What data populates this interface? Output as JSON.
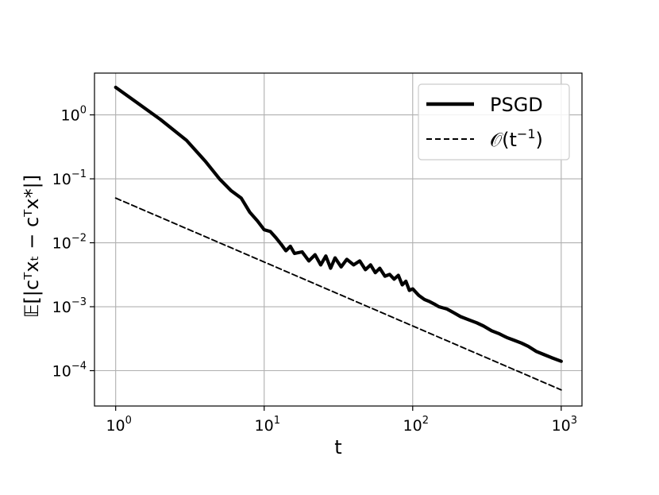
{
  "chart_data": {
    "type": "line",
    "xscale": "log",
    "yscale": "log",
    "xlim": [
      0.72,
      1380
    ],
    "ylim": [
      2.8e-05,
      4.5
    ],
    "grid": true,
    "legend_position": "top-right",
    "xlabel": "t",
    "ylabel": "𝔼[|cᵀxₜ − cᵀx*|]",
    "xticks": [
      {
        "value": 1,
        "base": "10",
        "exp": "0"
      },
      {
        "value": 10,
        "base": "10",
        "exp": "1"
      },
      {
        "value": 100,
        "base": "10",
        "exp": "2"
      },
      {
        "value": 1000,
        "base": "10",
        "exp": "3"
      }
    ],
    "yticks": [
      {
        "value": 1,
        "base": "10",
        "exp": "0"
      },
      {
        "value": 0.1,
        "base": "10",
        "exp": "−1"
      },
      {
        "value": 0.01,
        "base": "10",
        "exp": "−2"
      },
      {
        "value": 0.001,
        "base": "10",
        "exp": "−3"
      },
      {
        "value": 0.0001,
        "base": "10",
        "exp": "−4"
      }
    ],
    "series": [
      {
        "name": "PSGD",
        "style": "solid",
        "color": "#000000",
        "points": [
          [
            1,
            2.7
          ],
          [
            2,
            0.85
          ],
          [
            3,
            0.4
          ],
          [
            4,
            0.19
          ],
          [
            5,
            0.1
          ],
          [
            6,
            0.065
          ],
          [
            7,
            0.05
          ],
          [
            8,
            0.03
          ],
          [
            9,
            0.022
          ],
          [
            10,
            0.016
          ],
          [
            11,
            0.015
          ],
          [
            12,
            0.012
          ],
          [
            13,
            0.0095
          ],
          [
            14,
            0.0075
          ],
          [
            15,
            0.0088
          ],
          [
            16,
            0.0068
          ],
          [
            18,
            0.0072
          ],
          [
            20,
            0.0052
          ],
          [
            22,
            0.0065
          ],
          [
            24,
            0.0045
          ],
          [
            26,
            0.0062
          ],
          [
            28,
            0.004
          ],
          [
            30,
            0.0058
          ],
          [
            33,
            0.0042
          ],
          [
            36,
            0.0055
          ],
          [
            40,
            0.0045
          ],
          [
            44,
            0.0052
          ],
          [
            48,
            0.0038
          ],
          [
            52,
            0.0045
          ],
          [
            56,
            0.0034
          ],
          [
            60,
            0.004
          ],
          [
            65,
            0.003
          ],
          [
            70,
            0.0032
          ],
          [
            75,
            0.0027
          ],
          [
            80,
            0.0031
          ],
          [
            85,
            0.0022
          ],
          [
            90,
            0.0025
          ],
          [
            95,
            0.0018
          ],
          [
            100,
            0.0019
          ],
          [
            110,
            0.0015
          ],
          [
            120,
            0.0013
          ],
          [
            130,
            0.0012
          ],
          [
            140,
            0.0011
          ],
          [
            150,
            0.001
          ],
          [
            170,
            0.00092
          ],
          [
            190,
            0.0008
          ],
          [
            210,
            0.0007
          ],
          [
            240,
            0.00062
          ],
          [
            270,
            0.00056
          ],
          [
            300,
            0.0005
          ],
          [
            340,
            0.00042
          ],
          [
            380,
            0.00038
          ],
          [
            430,
            0.00033
          ],
          [
            480,
            0.0003
          ],
          [
            540,
            0.00027
          ],
          [
            600,
            0.00024
          ],
          [
            680,
            0.0002
          ],
          [
            760,
            0.00018
          ],
          [
            860,
            0.00016
          ],
          [
            1000,
            0.00014
          ]
        ]
      },
      {
        "name": "𝒪(t⁻¹)",
        "style": "dashed",
        "color": "#000000",
        "points": [
          [
            1,
            0.05
          ],
          [
            1000,
            5e-05
          ]
        ]
      }
    ],
    "legend": {
      "entries": [
        {
          "label": "PSGD",
          "series": 0
        },
        {
          "label_main": "𝒪(t",
          "label_sup": "−1",
          "label_end": ")",
          "series": 1
        }
      ]
    }
  }
}
